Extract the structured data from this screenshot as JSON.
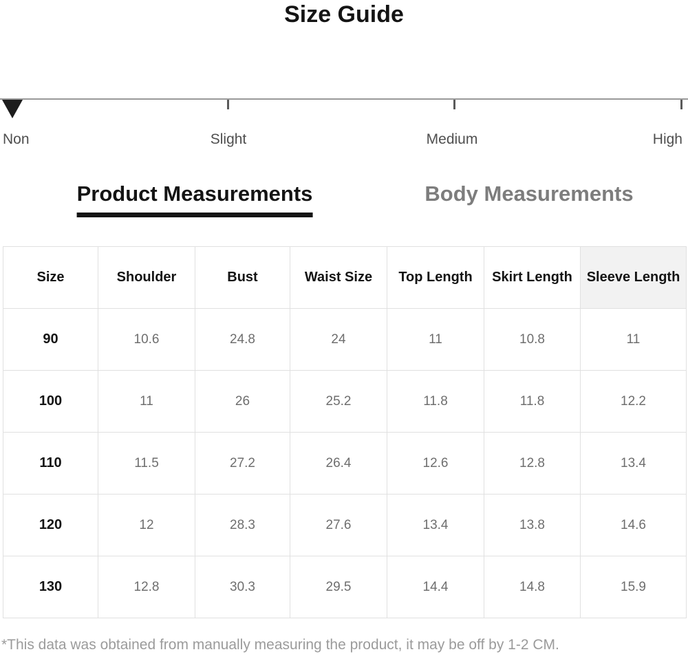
{
  "title": "Size Guide",
  "elasticity_scale": {
    "labels": [
      "Non",
      "Slight",
      "Medium",
      "High"
    ],
    "selected": "Non"
  },
  "tabs": [
    {
      "label": "Product Measurements",
      "active": true
    },
    {
      "label": "Body Measurements",
      "active": false
    }
  ],
  "table": {
    "headers": [
      "Size",
      "Shoulder",
      "Bust",
      "Waist Size",
      "Top Length",
      "Skirt Length",
      "Sleeve Length"
    ],
    "rows": [
      [
        "90",
        "10.6",
        "24.8",
        "24",
        "11",
        "10.8",
        "11"
      ],
      [
        "100",
        "11",
        "26",
        "25.2",
        "11.8",
        "11.8",
        "12.2"
      ],
      [
        "110",
        "11.5",
        "27.2",
        "26.4",
        "12.6",
        "12.8",
        "13.4"
      ],
      [
        "120",
        "12",
        "28.3",
        "27.6",
        "13.4",
        "13.8",
        "14.6"
      ],
      [
        "130",
        "12.8",
        "30.3",
        "29.5",
        "14.4",
        "14.8",
        "15.9"
      ]
    ]
  },
  "footnote": "*This data was obtained from manually measuring the product, it may be off by 1-2 CM.",
  "colors": {
    "text_primary": "#141414",
    "text_secondary": "#6e6e6e",
    "tab_inactive": "#7d7d7d",
    "scale_line": "#999999",
    "table_border": "#e0e0e0",
    "header_shaded_bg": "#f2f2f2",
    "footnote_text": "#9b9b9b"
  }
}
